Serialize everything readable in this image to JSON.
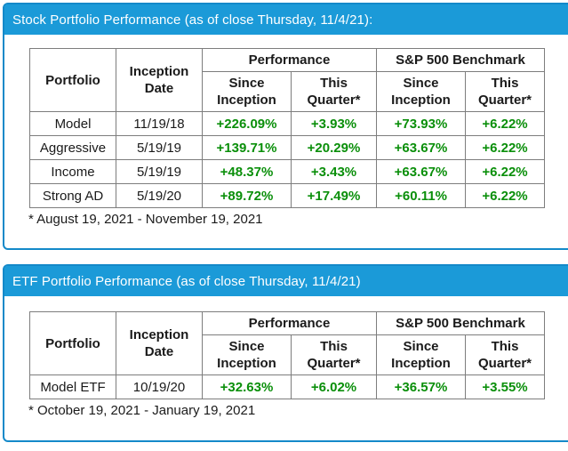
{
  "colors": {
    "header_bar_blue": "#1b9ad8",
    "panel_border_blue": "#1489c9",
    "positive_green": "#0a8f0a",
    "grid_gray": "#7d7d7d",
    "header_text": "#ffffff",
    "body_text": "#1a1a1a"
  },
  "sections": [
    {
      "title": "Stock Portfolio Performance (as of close Thursday, 11/4/21):",
      "headers": {
        "portfolio": "Portfolio",
        "inception_date": "Inception Date",
        "performance": "Performance",
        "benchmark": "S&P 500 Benchmark",
        "since_inception": "Since Inception",
        "this_quarter": "This Quarter*"
      },
      "rows": [
        {
          "portfolio": "Model",
          "inception_date": "11/19/18",
          "perf_since": "+226.09%",
          "perf_quarter": "+3.93%",
          "bench_since": "+73.93%",
          "bench_quarter": "+6.22%"
        },
        {
          "portfolio": "Aggressive",
          "inception_date": "5/19/19",
          "perf_since": "+139.71%",
          "perf_quarter": "+20.29%",
          "bench_since": "+63.67%",
          "bench_quarter": "+6.22%"
        },
        {
          "portfolio": "Income",
          "inception_date": "5/19/19",
          "perf_since": "+48.37%",
          "perf_quarter": "+3.43%",
          "bench_since": "+63.67%",
          "bench_quarter": "+6.22%"
        },
        {
          "portfolio": "Strong AD",
          "inception_date": "5/19/20",
          "perf_since": "+89.72%",
          "perf_quarter": "+17.49%",
          "bench_since": "+60.11%",
          "bench_quarter": "+6.22%"
        }
      ],
      "footnote": "* August 19, 2021 - November 19, 2021"
    },
    {
      "title": "ETF Portfolio Performance (as of close Thursday, 11/4/21)",
      "headers": {
        "portfolio": "Portfolio",
        "inception_date": "Inception Date",
        "performance": "Performance",
        "benchmark": "S&P 500 Benchmark",
        "since_inception": "Since Inception",
        "this_quarter": "This Quarter*"
      },
      "rows": [
        {
          "portfolio": "Model ETF",
          "inception_date": "10/19/20",
          "perf_since": "+32.63%",
          "perf_quarter": "+6.02%",
          "bench_since": "+36.57%",
          "bench_quarter": "+3.55%"
        }
      ],
      "footnote": "* October 19, 2021 - January 19, 2021"
    }
  ]
}
